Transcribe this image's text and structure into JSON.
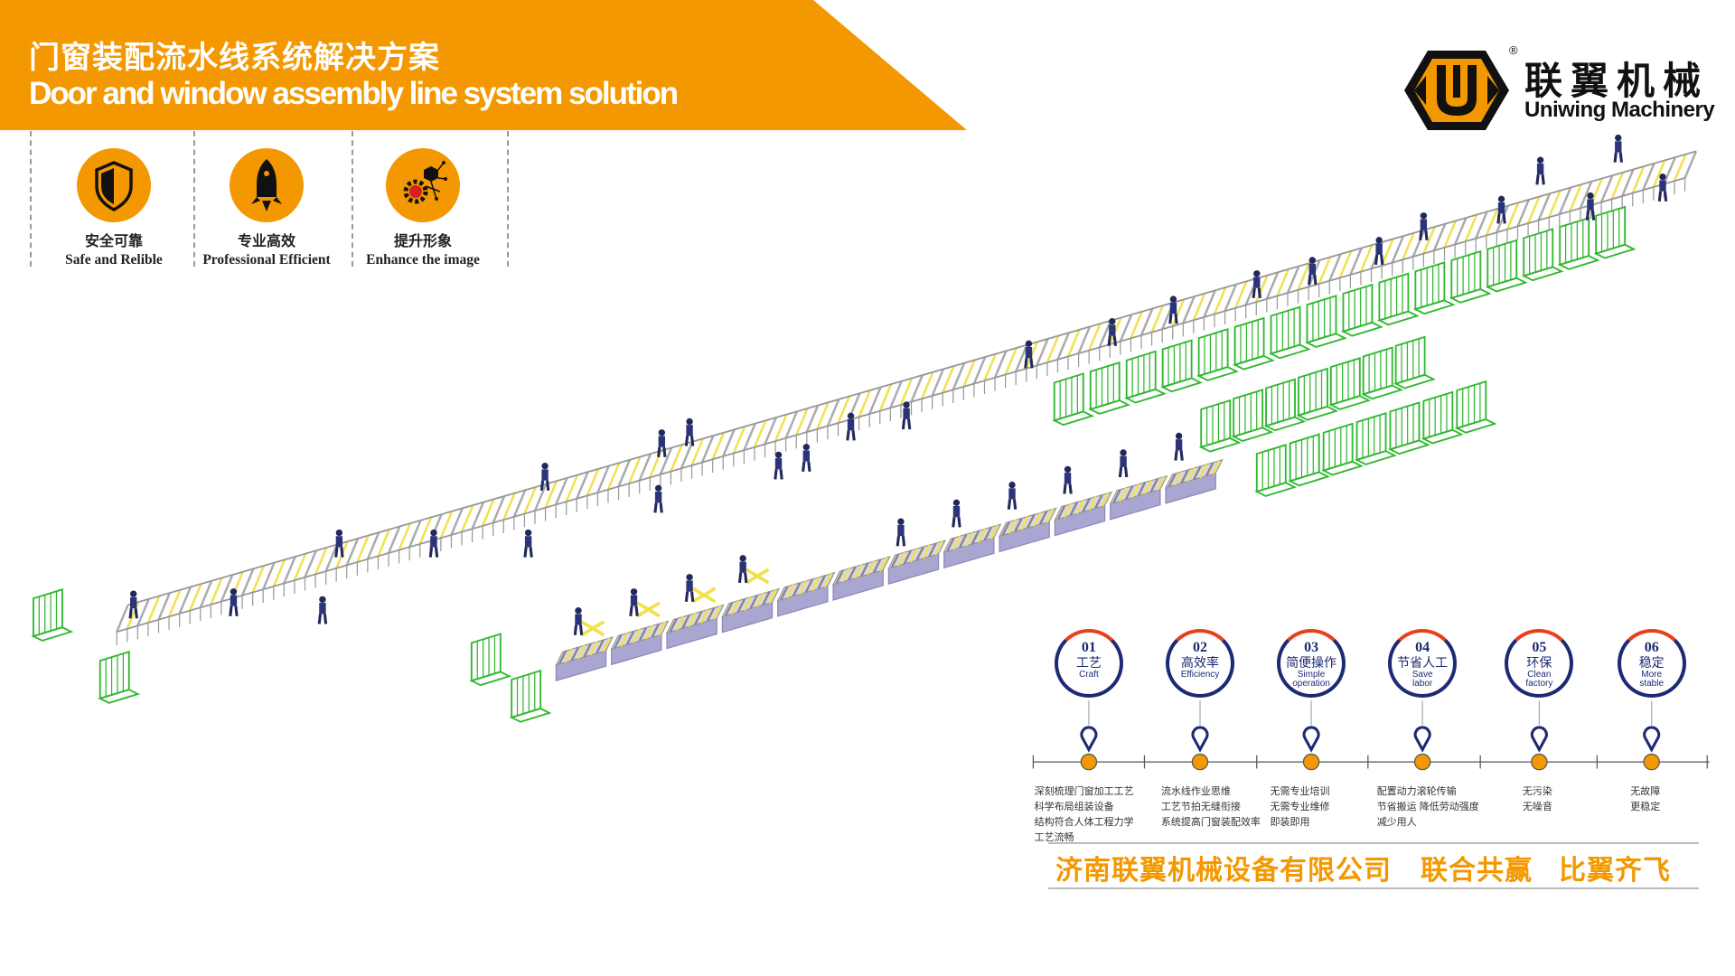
{
  "header": {
    "title_cn": "门窗装配流水线系统解决方案",
    "title_en": "Door and window assembly line system solution",
    "banner_color": "#F39800"
  },
  "logo": {
    "name_cn": "联翼机械",
    "name_en": "Uniwing Machinery",
    "registered": "®"
  },
  "features": [
    {
      "icon": "shield-icon",
      "cn": "安全可靠",
      "en": "Safe and Relible"
    },
    {
      "icon": "rocket-icon",
      "cn": "专业高效",
      "en": "Professional Efficient"
    },
    {
      "icon": "gear-network-icon",
      "cn": "提升形象",
      "en": "Enhance the image"
    }
  ],
  "steps": [
    {
      "num": "01",
      "cn": "工艺",
      "en": "Craft",
      "desc": [
        "深刻梳理门窗加工工艺",
        "科学布局组装设备",
        "结构符合人体工程力学",
        "工艺流畅"
      ]
    },
    {
      "num": "02",
      "cn": "高效率",
      "en": "Efficiency",
      "desc": [
        "流水线作业思维",
        "工艺节拍无缝衔接",
        "系统提高门窗装配效率"
      ]
    },
    {
      "num": "03",
      "cn": "简便操作",
      "en": "Simple\noperation",
      "desc": [
        "无需专业培训",
        "无需专业维修",
        "即装即用"
      ]
    },
    {
      "num": "04",
      "cn": "节省人工",
      "en": "Save\nlabor",
      "desc": [
        "配置动力滚轮传输",
        "节省搬运  降低劳动强度",
        "减少用人"
      ]
    },
    {
      "num": "05",
      "cn": "环保",
      "en": "Clean\nfactory",
      "desc": [
        "无污染",
        "无噪音"
      ]
    },
    {
      "num": "06",
      "cn": "稳定",
      "en": "More\nstable",
      "desc": [
        "无故障",
        "更稳定"
      ]
    }
  ],
  "slogan": {
    "company": "济南联翼机械设备有限公司",
    "motto1": "联合共赢",
    "motto2": "比翼齐飞"
  },
  "colors": {
    "accent": "#F39800",
    "navy": "#1d2a73",
    "rack_green": "#2eb82e",
    "roller_yellow": "#f2e14a",
    "box_lavender": "#aaa6d2"
  }
}
